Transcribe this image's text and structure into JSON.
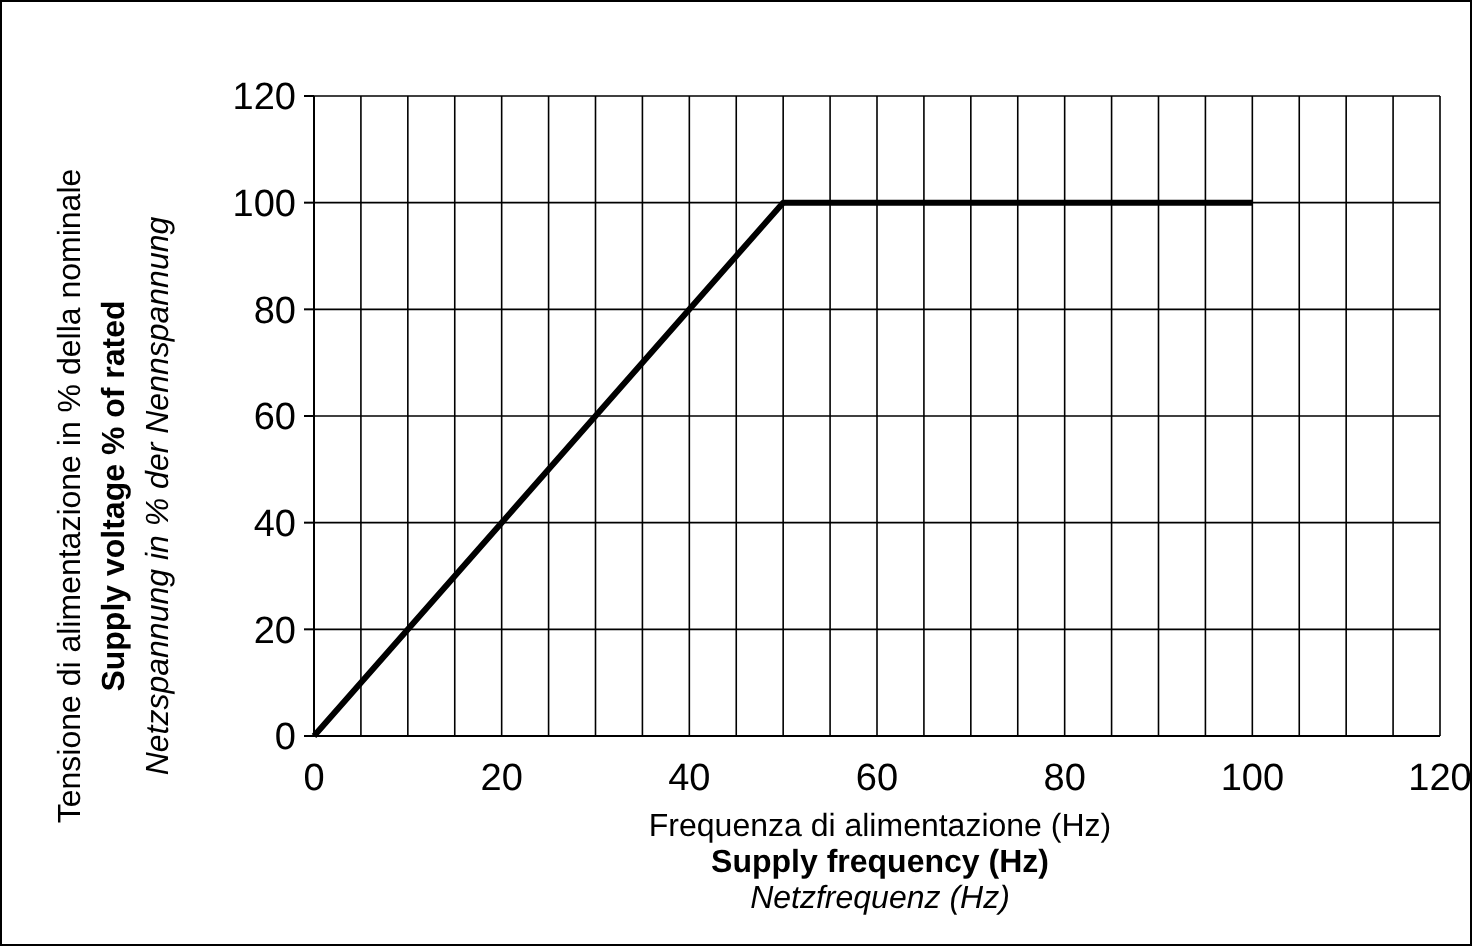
{
  "chart_data": {
    "type": "line",
    "xlabel": "Frequenza di alimentazione (Hz)\nSupply frequency (Hz)\nNetzfrequenz (Hz)",
    "ylabel": "Tensione di alimentazione in % della nominale\nSupply voltage % of rated\nNetzspannung in % der Nennspannung",
    "x": [
      0,
      20,
      50,
      100
    ],
    "series": [
      {
        "color": "#000000",
        "values": [
          0,
          40,
          100,
          100
        ]
      }
    ],
    "xlim": [
      0,
      120
    ],
    "ylim": [
      0,
      120
    ],
    "xticks": [
      0,
      {
        "value": 5,
        "label": null
      },
      {
        "value": 10,
        "label": null
      },
      {
        "value": 15,
        "label": null
      },
      20,
      {
        "value": 25,
        "label": null
      },
      {
        "value": 30,
        "label": null
      },
      {
        "value": 35,
        "label": null
      },
      40,
      {
        "value": 45,
        "label": null
      },
      {
        "value": 50,
        "label": null
      },
      {
        "value": 55,
        "label": null
      },
      60,
      {
        "value": 65,
        "label": null
      },
      {
        "value": 70,
        "label": null
      },
      {
        "value": 75,
        "label": null
      },
      80,
      {
        "value": 85,
        "label": null
      },
      {
        "value": 90,
        "label": null
      },
      {
        "value": 95,
        "label": null
      },
      100,
      {
        "value": 105,
        "label": null
      },
      {
        "value": 110,
        "label": null
      },
      {
        "value": 115,
        "label": null
      },
      120
    ],
    "yticks": [
      0,
      20,
      40,
      60,
      80,
      100,
      120
    ],
    "grid": true,
    "marker": "none",
    "line_style": "solid"
  }
}
